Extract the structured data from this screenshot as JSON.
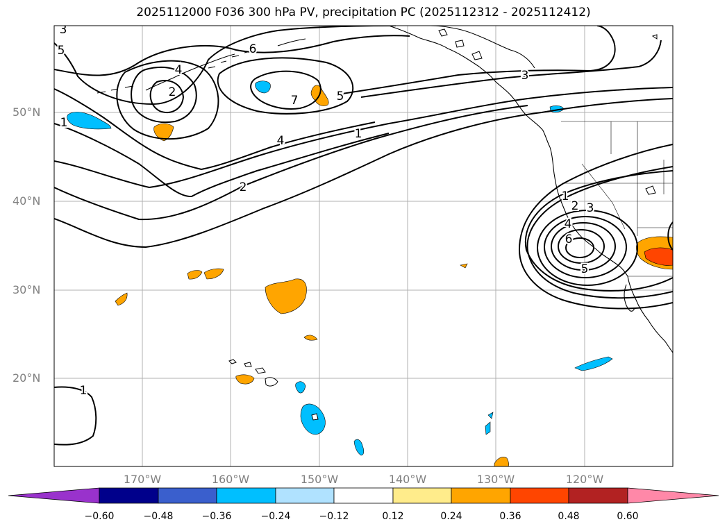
{
  "title": "2025112000 F036 300 hPa PV, precipitation PC (2025112312 - 2025112412)",
  "axes": {
    "lat_ticks": [
      "50°N",
      "40°N",
      "30°N",
      "20°N"
    ],
    "lon_ticks": [
      "170°W",
      "160°W",
      "150°W",
      "140°W",
      "130°W",
      "120°W"
    ]
  },
  "contour_labels": [
    {
      "text": "3"
    },
    {
      "text": "5"
    },
    {
      "text": "6"
    },
    {
      "text": "4"
    },
    {
      "text": "2"
    },
    {
      "text": "7"
    },
    {
      "text": "5"
    },
    {
      "text": "3"
    },
    {
      "text": "1"
    },
    {
      "text": "4"
    },
    {
      "text": "1"
    },
    {
      "text": "2"
    },
    {
      "text": "1"
    },
    {
      "text": "2"
    },
    {
      "text": "3"
    },
    {
      "text": "4"
    },
    {
      "text": "6"
    },
    {
      "text": "5"
    },
    {
      "text": "1"
    }
  ],
  "colorbar": {
    "labels": [
      "−0.60",
      "−0.48",
      "−0.36",
      "−0.24",
      "−0.12",
      "0.12",
      "0.24",
      "0.36",
      "0.48",
      "0.60"
    ],
    "colors": [
      "#9932cc",
      "#00008b",
      "#3a5fcd",
      "#00bfff",
      "#b0e2ff",
      "#ffffff",
      "#ffec8b",
      "#ffa500",
      "#ff4500",
      "#b22222",
      "#ff88a8"
    ]
  }
}
